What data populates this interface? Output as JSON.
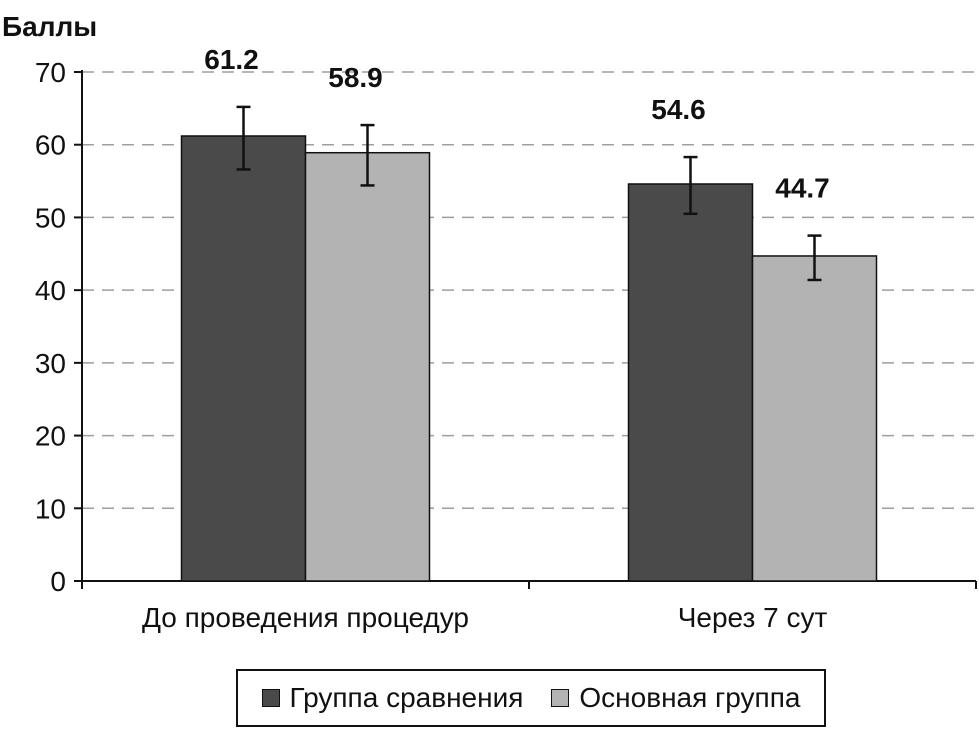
{
  "chart_data": {
    "type": "bar",
    "ylabel": "Баллы",
    "ylim": [
      0,
      70
    ],
    "yticks": [
      0,
      10,
      20,
      30,
      40,
      50,
      60,
      70
    ],
    "grid": true,
    "legend_position": "bottom",
    "categories": [
      "До проведения процедур",
      "Через 7 сут"
    ],
    "series": [
      {
        "name": "Группа сравнения",
        "color": "#4a4a4a",
        "values": [
          61.2,
          54.6
        ],
        "value_labels": [
          "61.2",
          "54.6"
        ],
        "error_low": [
          56.6,
          50.5
        ],
        "error_high": [
          65.2,
          58.3
        ]
      },
      {
        "name": "Основная группа",
        "color": "#b3b3b3",
        "values": [
          58.9,
          44.7
        ],
        "value_labels": [
          "58.9",
          "44.7"
        ],
        "error_low": [
          54.4,
          41.4
        ],
        "error_high": [
          62.7,
          47.5
        ]
      }
    ]
  }
}
